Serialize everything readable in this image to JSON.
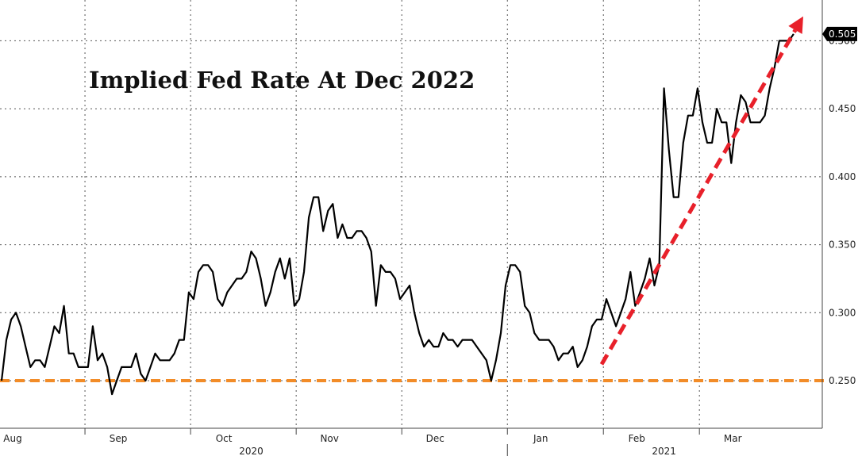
{
  "chart_data": {
    "type": "line",
    "title": "Implied Fed Rate At Dec 2022",
    "xlabel": "",
    "ylabel": "",
    "ylim": [
      0.215,
      0.53
    ],
    "y_ticks": [
      0.25,
      0.3,
      0.35,
      0.4,
      0.45,
      0.5
    ],
    "y_tick_labels": [
      "0.250",
      "0.300",
      "0.350",
      "0.400",
      "0.450",
      "0.500"
    ],
    "grid": true,
    "last_value_label": "0.505",
    "last_value": 0.505,
    "x_month_labels": [
      "Aug",
      "Sep",
      "Oct",
      "Nov",
      "Dec",
      "Jan",
      "Feb",
      "Mar"
    ],
    "x_month_index": [
      0,
      22,
      44,
      66,
      88,
      110,
      130,
      150
    ],
    "x_year_labels": [
      "2020",
      "2021"
    ],
    "x_year_index": [
      52,
      138
    ],
    "x_count": 168,
    "line_color": "#000000",
    "baseline": {
      "value": 0.25,
      "color": "#f28c28",
      "style": "dashed"
    },
    "trend_arrow": {
      "color": "#e8202a",
      "from": [
        125,
        0.262
      ],
      "to": [
        167,
        0.518
      ]
    },
    "series": [
      {
        "name": "",
        "values": [
          0.25,
          0.28,
          0.295,
          0.3,
          0.29,
          0.275,
          0.26,
          0.265,
          0.265,
          0.26,
          0.275,
          0.29,
          0.285,
          0.305,
          0.27,
          0.27,
          0.26,
          0.26,
          0.26,
          0.29,
          0.265,
          0.27,
          0.26,
          0.24,
          0.25,
          0.26,
          0.26,
          0.26,
          0.27,
          0.255,
          0.25,
          0.26,
          0.27,
          0.265,
          0.265,
          0.265,
          0.27,
          0.28,
          0.28,
          0.315,
          0.31,
          0.33,
          0.335,
          0.335,
          0.33,
          0.31,
          0.305,
          0.315,
          0.32,
          0.325,
          0.325,
          0.33,
          0.345,
          0.34,
          0.325,
          0.305,
          0.315,
          0.33,
          0.34,
          0.325,
          0.34,
          0.305,
          0.31,
          0.33,
          0.37,
          0.385,
          0.385,
          0.36,
          0.375,
          0.38,
          0.355,
          0.365,
          0.355,
          0.355,
          0.36,
          0.36,
          0.355,
          0.345,
          0.305,
          0.335,
          0.33,
          0.33,
          0.325,
          0.31,
          0.315,
          0.32,
          0.3,
          0.285,
          0.275,
          0.28,
          0.275,
          0.275,
          0.285,
          0.28,
          0.28,
          0.275,
          0.28,
          0.28,
          0.28,
          0.275,
          0.27,
          0.265,
          0.25,
          0.265,
          0.285,
          0.32,
          0.335,
          0.335,
          0.33,
          0.305,
          0.3,
          0.285,
          0.28,
          0.28,
          0.28,
          0.275,
          0.265,
          0.27,
          0.27,
          0.275,
          0.26,
          0.265,
          0.275,
          0.29,
          0.295,
          0.295,
          0.31,
          0.3,
          0.29,
          0.3,
          0.31,
          0.33,
          0.305,
          0.315,
          0.325,
          0.34,
          0.32,
          0.335,
          0.465,
          0.42,
          0.385,
          0.385,
          0.425,
          0.445,
          0.445,
          0.465,
          0.44,
          0.425,
          0.425,
          0.45,
          0.44,
          0.44,
          0.41,
          0.44,
          0.46,
          0.455,
          0.44,
          0.44,
          0.44,
          0.445,
          0.465,
          0.48,
          0.5,
          0.5,
          0.5,
          0.505
        ]
      }
    ]
  }
}
